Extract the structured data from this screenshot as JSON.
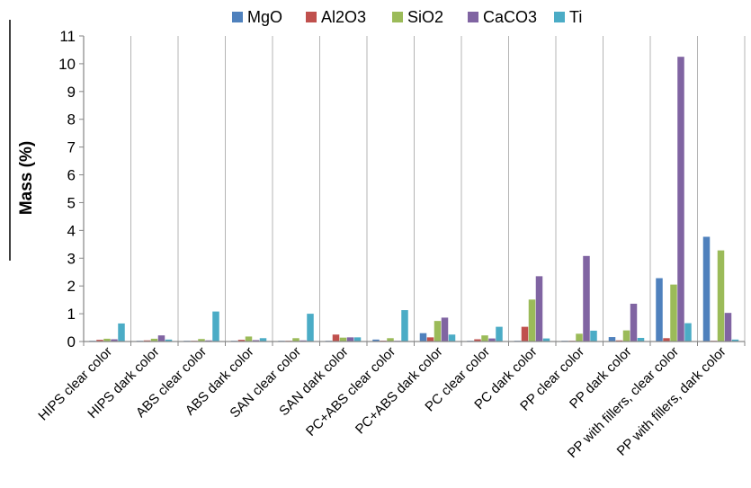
{
  "chart_data": {
    "type": "bar",
    "title": "",
    "xlabel": "",
    "ylabel": "Mass (%)",
    "ylim": [
      0,
      11
    ],
    "yticks": [
      0,
      1,
      2,
      3,
      4,
      5,
      6,
      7,
      8,
      9,
      10,
      11
    ],
    "grid": "vertical category separators",
    "legend_position": "top",
    "categories": [
      "HIPS clear color",
      "HIPS dark color",
      "ABS clear color",
      "ABS dark color",
      "SAN clear color",
      "SAN dark color",
      "PC+ABS clear color",
      "PC+ABS dark color",
      "PC clear color",
      "PC dark color",
      "PP clear color",
      "PP dark color",
      "PP with fillers, clear color",
      "PP with fillers, dark color"
    ],
    "series": [
      {
        "name": "MgO",
        "color": "#4F81BD",
        "values": [
          0.02,
          0.02,
          0.02,
          0.02,
          0.02,
          0.02,
          0.07,
          0.3,
          0.02,
          0.02,
          0.02,
          0.16,
          2.28,
          3.77
        ]
      },
      {
        "name": "Al2O3",
        "color": "#C0504D",
        "values": [
          0.06,
          0.04,
          0.02,
          0.06,
          0.02,
          0.25,
          0.03,
          0.15,
          0.08,
          0.53,
          0.02,
          0.04,
          0.12,
          0.02
        ]
      },
      {
        "name": "SiO2",
        "color": "#9BBB59",
        "values": [
          0.1,
          0.1,
          0.09,
          0.18,
          0.12,
          0.14,
          0.12,
          0.74,
          0.22,
          1.51,
          0.28,
          0.4,
          2.05,
          3.28
        ]
      },
      {
        "name": "CaCO3",
        "color": "#8064A2",
        "values": [
          0.08,
          0.22,
          0.04,
          0.05,
          0.04,
          0.15,
          0.02,
          0.86,
          0.11,
          2.35,
          3.08,
          1.36,
          10.25,
          1.03
        ]
      },
      {
        "name": "Ti",
        "color": "#4BACC6",
        "values": [
          0.65,
          0.07,
          1.08,
          0.12,
          1.0,
          0.15,
          1.13,
          0.25,
          0.53,
          0.11,
          0.39,
          0.13,
          0.66,
          0.07
        ]
      }
    ]
  }
}
